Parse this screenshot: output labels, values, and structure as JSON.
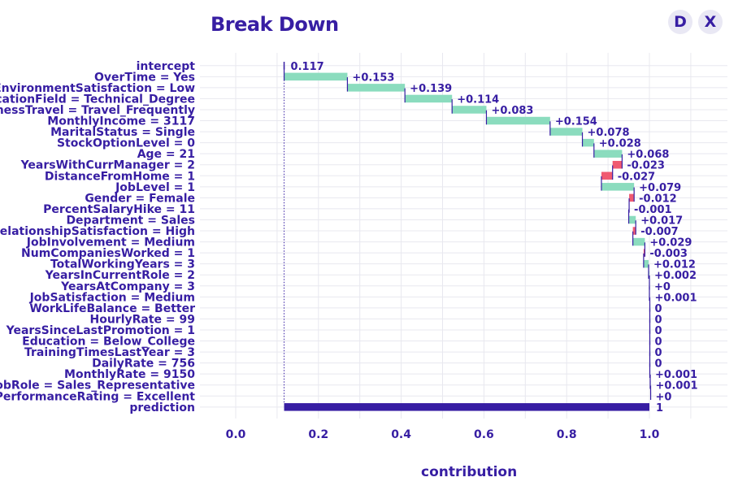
{
  "title": "Break Down",
  "buttons": {
    "d": "D",
    "x": "X"
  },
  "chart_data": {
    "type": "waterfall",
    "title": "Break Down",
    "xlabel": "contribution",
    "xlim": [
      -0.09,
      1.12
    ],
    "xticks": [
      0.0,
      0.2,
      0.4,
      0.6,
      0.8,
      1.0
    ],
    "xtick_labels": [
      "0.0",
      "0.2",
      "0.4",
      "0.6",
      "0.8",
      "1.0"
    ],
    "colors": {
      "positive": "#8bdcbe",
      "negative": "#f05a71",
      "prediction": "#371ea3",
      "text": "#371ea3",
      "grid": "#e8e8ef"
    },
    "intercept": 0.117,
    "prediction": 1,
    "rows": [
      {
        "label": "intercept",
        "value": 0.117,
        "label_text": "0.117"
      },
      {
        "label": "OverTime = Yes",
        "value": 0.153,
        "label_text": "+0.153"
      },
      {
        "label": "EnvironmentSatisfaction = Low",
        "value": 0.139,
        "label_text": "+0.139"
      },
      {
        "label": "EducationField = Technical_Degree",
        "value": 0.114,
        "label_text": "+0.114"
      },
      {
        "label": "BusinessTravel = Travel_Frequently",
        "value": 0.083,
        "label_text": "+0.083"
      },
      {
        "label": "MonthlyIncome = 3117",
        "value": 0.154,
        "label_text": "+0.154"
      },
      {
        "label": "MaritalStatus = Single",
        "value": 0.078,
        "label_text": "+0.078"
      },
      {
        "label": "StockOptionLevel = 0",
        "value": 0.028,
        "label_text": "+0.028"
      },
      {
        "label": "Age = 21",
        "value": 0.068,
        "label_text": "+0.068"
      },
      {
        "label": "YearsWithCurrManager = 2",
        "value": -0.023,
        "label_text": "-0.023"
      },
      {
        "label": "DistanceFromHome = 1",
        "value": -0.027,
        "label_text": "-0.027"
      },
      {
        "label": "JobLevel = 1",
        "value": 0.079,
        "label_text": "+0.079"
      },
      {
        "label": "Gender = Female",
        "value": -0.012,
        "label_text": "-0.012"
      },
      {
        "label": "PercentSalaryHike = 11",
        "value": -0.001,
        "label_text": "-0.001"
      },
      {
        "label": "Department = Sales",
        "value": 0.017,
        "label_text": "+0.017"
      },
      {
        "label": "RelationshipSatisfaction = High",
        "value": -0.007,
        "label_text": "-0.007"
      },
      {
        "label": "JobInvolvement = Medium",
        "value": 0.029,
        "label_text": "+0.029"
      },
      {
        "label": "NumCompaniesWorked = 1",
        "value": -0.003,
        "label_text": "-0.003"
      },
      {
        "label": "TotalWorkingYears = 3",
        "value": 0.012,
        "label_text": "+0.012"
      },
      {
        "label": "YearsInCurrentRole = 2",
        "value": 0.002,
        "label_text": "+0.002"
      },
      {
        "label": "YearsAtCompany = 3",
        "value": 0,
        "label_text": "+0"
      },
      {
        "label": "JobSatisfaction = Medium",
        "value": 0.001,
        "label_text": "+0.001"
      },
      {
        "label": "WorkLifeBalance = Better",
        "value": 0,
        "label_text": "0"
      },
      {
        "label": "HourlyRate = 99",
        "value": 0,
        "label_text": "0"
      },
      {
        "label": "YearsSinceLastPromotion = 1",
        "value": 0,
        "label_text": "0"
      },
      {
        "label": "Education = Below_College",
        "value": 0,
        "label_text": "0"
      },
      {
        "label": "TrainingTimesLastYear = 3",
        "value": 0,
        "label_text": "0"
      },
      {
        "label": "DailyRate = 756",
        "value": 0,
        "label_text": "0"
      },
      {
        "label": "MonthlyRate = 9150",
        "value": 0.001,
        "label_text": "+0.001"
      },
      {
        "label": "JobRole = Sales_Representative",
        "value": 0.001,
        "label_text": "+0.001"
      },
      {
        "label": "PerformanceRating = Excellent",
        "value": 0,
        "label_text": "+0"
      },
      {
        "label": "prediction",
        "value": 1,
        "label_text": "1"
      }
    ]
  }
}
